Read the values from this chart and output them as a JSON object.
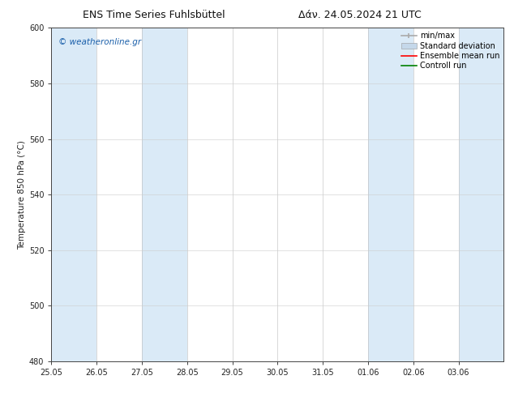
{
  "title_left": "ENS Time Series Fuhlsbüttel",
  "title_right": "Δάν. 24.05.2024 21 UTC",
  "ylabel": "Temperature 850 hPa (°C)",
  "xlim_min": 0,
  "xlim_max": 40,
  "ylim_min": 480,
  "ylim_max": 600,
  "yticks": [
    480,
    500,
    520,
    540,
    560,
    580,
    600
  ],
  "xtick_labels": [
    "25.05",
    "26.05",
    "27.05",
    "28.05",
    "29.05",
    "30.05",
    "31.05",
    "01.06",
    "02.06",
    "03.06"
  ],
  "xtick_positions": [
    0,
    4,
    8,
    12,
    16,
    20,
    24,
    28,
    32,
    36
  ],
  "shaded_bands": [
    {
      "x_start": 0,
      "x_end": 4
    },
    {
      "x_start": 8,
      "x_end": 12
    },
    {
      "x_start": 28,
      "x_end": 32
    },
    {
      "x_start": 36,
      "x_end": 40
    }
  ],
  "band_color": "#daeaf7",
  "background_color": "#ffffff",
  "plot_bg_color": "#ffffff",
  "watermark_text": "© weatheronline.gr",
  "watermark_color": "#1a5faa",
  "legend_items": [
    {
      "label": "min/max",
      "color": "#aaaaaa",
      "lw": 1.2,
      "style": "errbar"
    },
    {
      "label": "Standard deviation",
      "color": "#c5d8ea",
      "lw": 6,
      "style": "bar"
    },
    {
      "label": "Ensemble mean run",
      "color": "red",
      "lw": 1.2,
      "style": "line"
    },
    {
      "label": "Controll run",
      "color": "green",
      "lw": 1.2,
      "style": "line"
    }
  ],
  "spine_color": "#444444",
  "tick_color": "#222222",
  "title_fontsize": 9,
  "label_fontsize": 7.5,
  "tick_fontsize": 7,
  "legend_fontsize": 7,
  "watermark_fontsize": 7.5
}
